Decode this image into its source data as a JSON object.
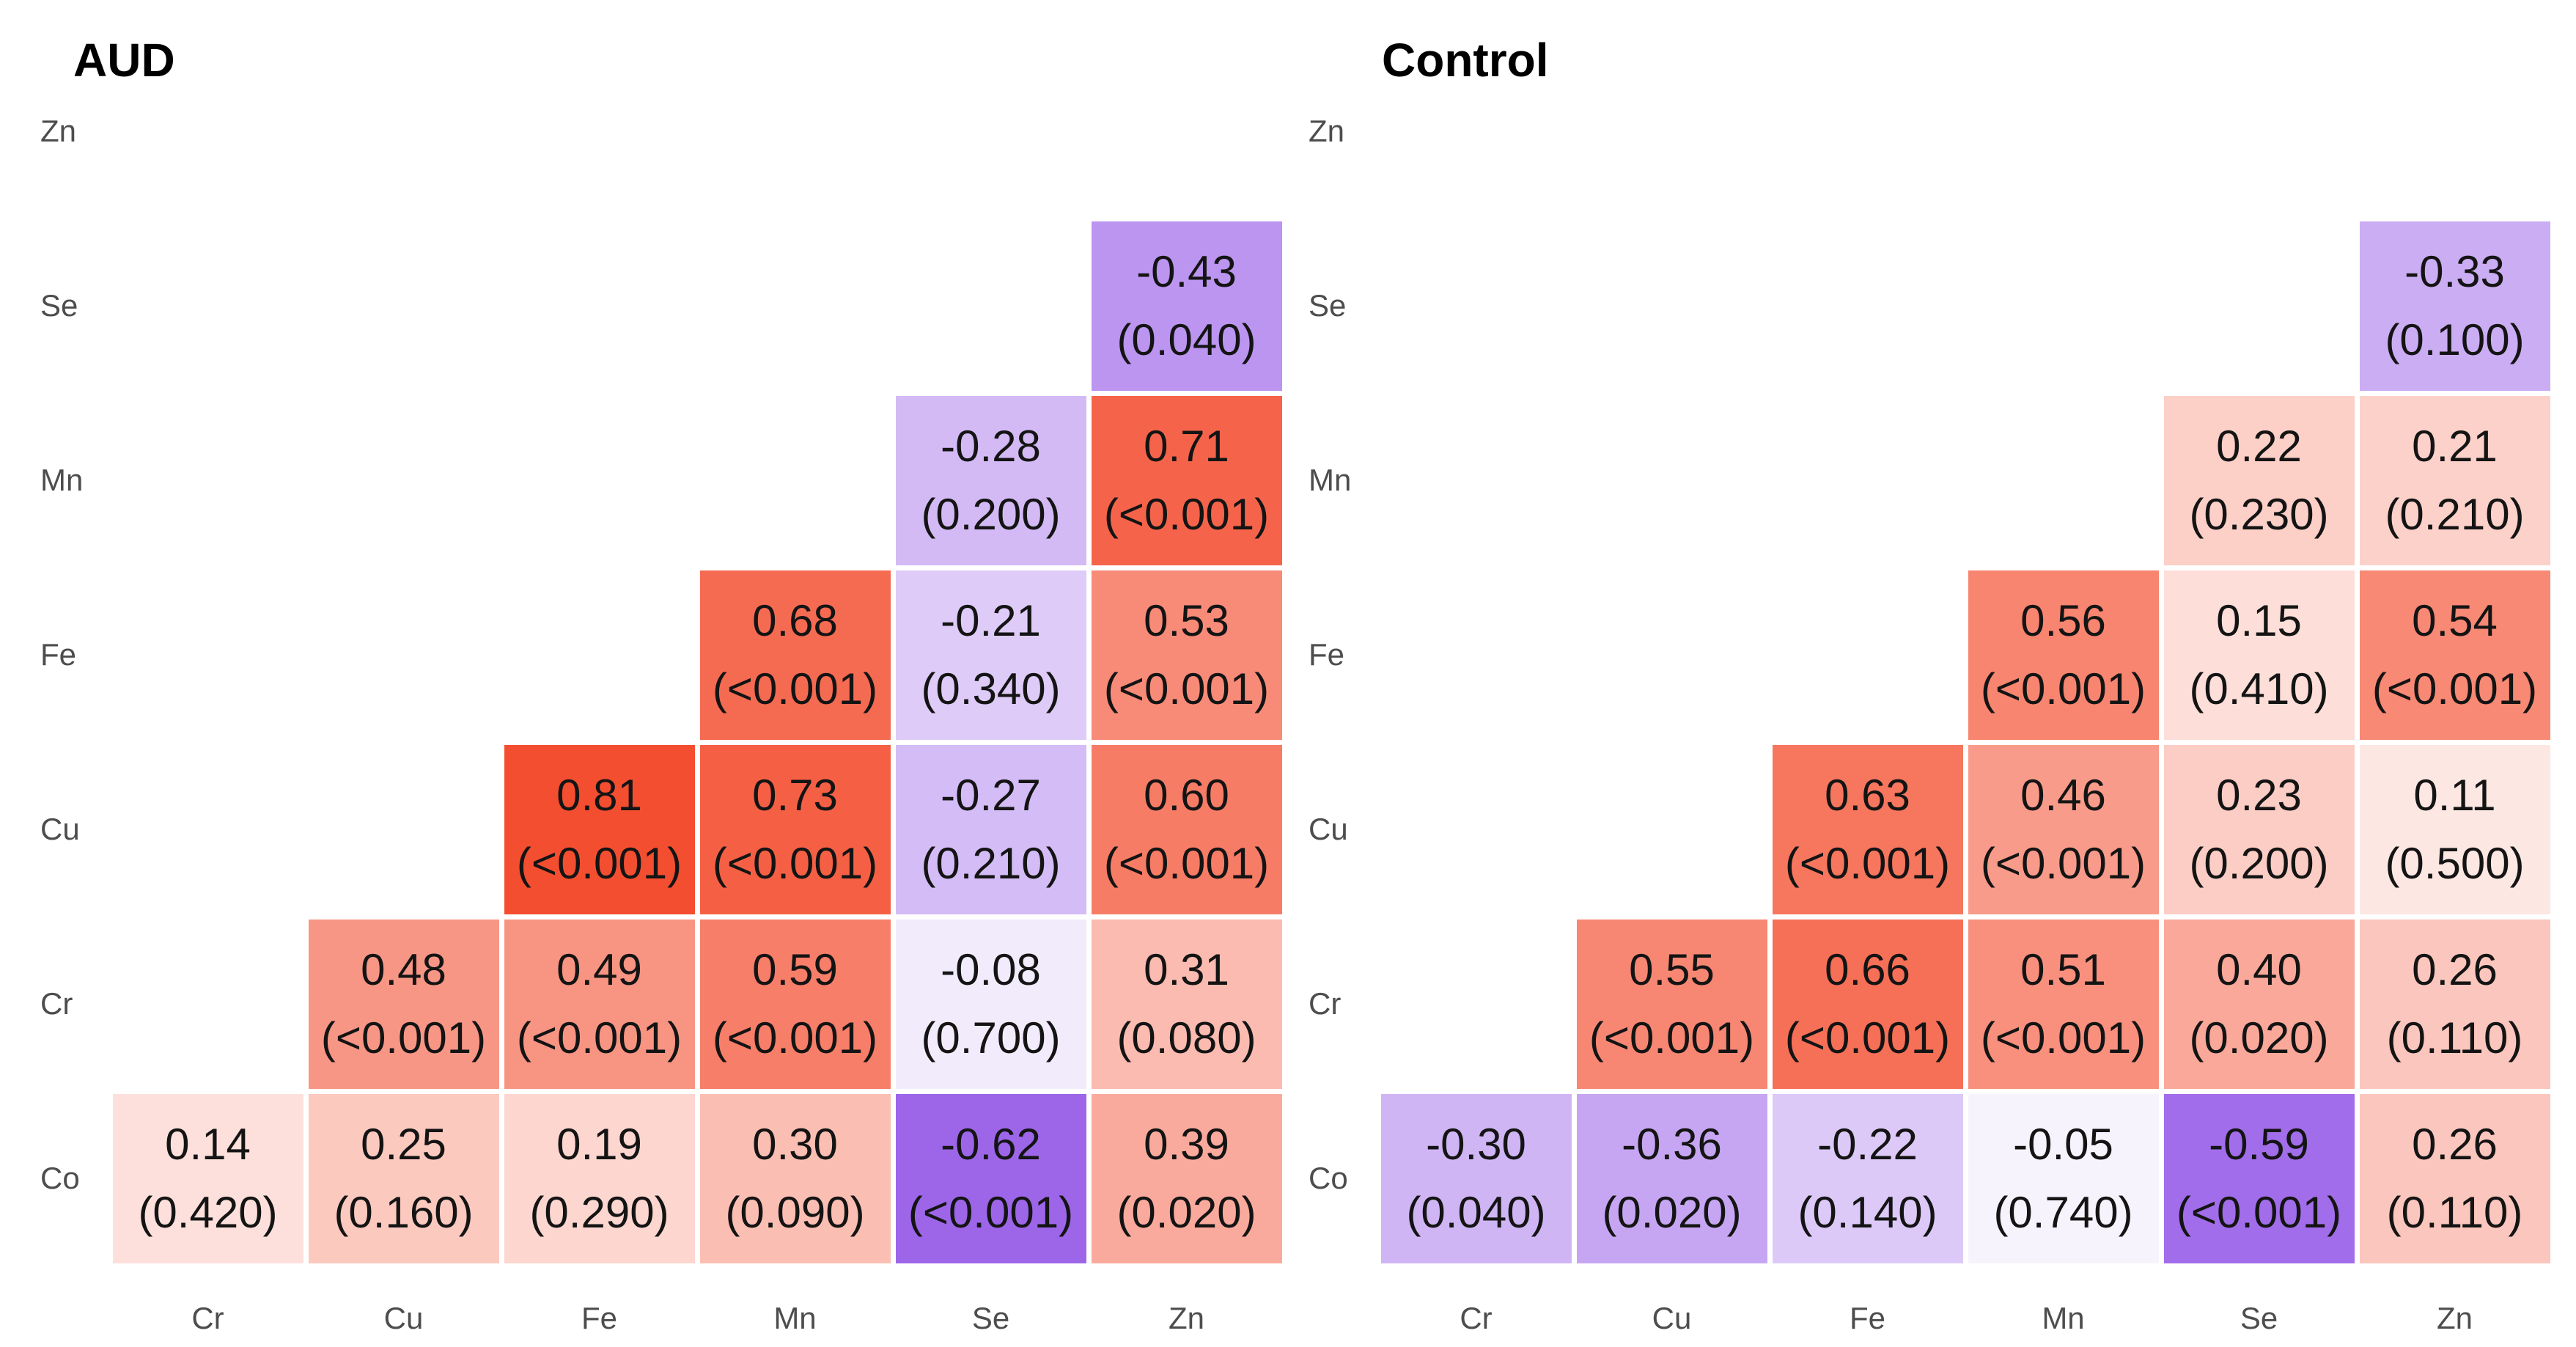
{
  "figure": {
    "background": "#ffffff",
    "cell_text_color": "#141414",
    "axis_label_color": "#4d4d4d",
    "palette": {
      "positive_end": "#f12500",
      "negative_end": "#6108dc",
      "mid": "#ffffff"
    }
  },
  "chart_data": [
    {
      "type": "heatmap",
      "title": "AUD",
      "x_labels": [
        "Cr",
        "Cu",
        "Fe",
        "Mn",
        "Se",
        "Zn"
      ],
      "y_labels": [
        "Zn",
        "Se",
        "Mn",
        "Fe",
        "Cu",
        "Cr",
        "Co"
      ],
      "value_range": [
        -1,
        1
      ],
      "grid": "off",
      "legend": "none",
      "cell_label_format": "r then (p) on second line",
      "cells": [
        {
          "row": "Se",
          "col": "Zn",
          "r": "-0.43",
          "p": "(0.040)"
        },
        {
          "row": "Mn",
          "col": "Se",
          "r": "-0.28",
          "p": "(0.200)"
        },
        {
          "row": "Mn",
          "col": "Zn",
          "r": "0.71",
          "p": "(<0.001)"
        },
        {
          "row": "Fe",
          "col": "Mn",
          "r": "0.68",
          "p": "(<0.001)"
        },
        {
          "row": "Fe",
          "col": "Se",
          "r": "-0.21",
          "p": "(0.340)"
        },
        {
          "row": "Fe",
          "col": "Zn",
          "r": "0.53",
          "p": "(<0.001)"
        },
        {
          "row": "Cu",
          "col": "Fe",
          "r": "0.81",
          "p": "(<0.001)"
        },
        {
          "row": "Cu",
          "col": "Mn",
          "r": "0.73",
          "p": "(<0.001)"
        },
        {
          "row": "Cu",
          "col": "Se",
          "r": "-0.27",
          "p": "(0.210)"
        },
        {
          "row": "Cu",
          "col": "Zn",
          "r": "0.60",
          "p": "(<0.001)"
        },
        {
          "row": "Cr",
          "col": "Cu",
          "r": "0.48",
          "p": "(<0.001)"
        },
        {
          "row": "Cr",
          "col": "Fe",
          "r": "0.49",
          "p": "(<0.001)"
        },
        {
          "row": "Cr",
          "col": "Mn",
          "r": "0.59",
          "p": "(<0.001)"
        },
        {
          "row": "Cr",
          "col": "Se",
          "r": "-0.08",
          "p": "(0.700)"
        },
        {
          "row": "Cr",
          "col": "Zn",
          "r": "0.31",
          "p": "(0.080)"
        },
        {
          "row": "Co",
          "col": "Cr",
          "r": "0.14",
          "p": "(0.420)"
        },
        {
          "row": "Co",
          "col": "Cu",
          "r": "0.25",
          "p": "(0.160)"
        },
        {
          "row": "Co",
          "col": "Fe",
          "r": "0.19",
          "p": "(0.290)"
        },
        {
          "row": "Co",
          "col": "Mn",
          "r": "0.30",
          "p": "(0.090)"
        },
        {
          "row": "Co",
          "col": "Se",
          "r": "-0.62",
          "p": "(<0.001)"
        },
        {
          "row": "Co",
          "col": "Zn",
          "r": "0.39",
          "p": "(0.020)"
        }
      ]
    },
    {
      "type": "heatmap",
      "title": "Control",
      "x_labels": [
        "Cr",
        "Cu",
        "Fe",
        "Mn",
        "Se",
        "Zn"
      ],
      "y_labels": [
        "Zn",
        "Se",
        "Mn",
        "Fe",
        "Cu",
        "Cr",
        "Co"
      ],
      "value_range": [
        -1,
        1
      ],
      "grid": "off",
      "legend": "none",
      "cell_label_format": "r then (p) on second line",
      "cells": [
        {
          "row": "Se",
          "col": "Zn",
          "r": "-0.33",
          "p": "(0.100)"
        },
        {
          "row": "Mn",
          "col": "Se",
          "r": "0.22",
          "p": "(0.230)"
        },
        {
          "row": "Mn",
          "col": "Zn",
          "r": "0.21",
          "p": "(0.210)"
        },
        {
          "row": "Fe",
          "col": "Mn",
          "r": "0.56",
          "p": "(<0.001)"
        },
        {
          "row": "Fe",
          "col": "Se",
          "r": "0.15",
          "p": "(0.410)"
        },
        {
          "row": "Fe",
          "col": "Zn",
          "r": "0.54",
          "p": "(<0.001)"
        },
        {
          "row": "Cu",
          "col": "Fe",
          "r": "0.63",
          "p": "(<0.001)"
        },
        {
          "row": "Cu",
          "col": "Mn",
          "r": "0.46",
          "p": "(<0.001)"
        },
        {
          "row": "Cu",
          "col": "Se",
          "r": "0.23",
          "p": "(0.200)"
        },
        {
          "row": "Cu",
          "col": "Zn",
          "r": "0.11",
          "p": "(0.500)"
        },
        {
          "row": "Cr",
          "col": "Cu",
          "r": "0.55",
          "p": "(<0.001)"
        },
        {
          "row": "Cr",
          "col": "Fe",
          "r": "0.66",
          "p": "(<0.001)"
        },
        {
          "row": "Cr",
          "col": "Mn",
          "r": "0.51",
          "p": "(<0.001)"
        },
        {
          "row": "Cr",
          "col": "Se",
          "r": "0.40",
          "p": "(0.020)"
        },
        {
          "row": "Cr",
          "col": "Zn",
          "r": "0.26",
          "p": "(0.110)"
        },
        {
          "row": "Co",
          "col": "Cr",
          "r": "-0.30",
          "p": "(0.040)"
        },
        {
          "row": "Co",
          "col": "Cu",
          "r": "-0.36",
          "p": "(0.020)"
        },
        {
          "row": "Co",
          "col": "Fe",
          "r": "-0.22",
          "p": "(0.140)"
        },
        {
          "row": "Co",
          "col": "Mn",
          "r": "-0.05",
          "p": "(0.740)"
        },
        {
          "row": "Co",
          "col": "Se",
          "r": "-0.59",
          "p": "(<0.001)"
        },
        {
          "row": "Co",
          "col": "Zn",
          "r": "0.26",
          "p": "(0.110)"
        }
      ]
    }
  ]
}
